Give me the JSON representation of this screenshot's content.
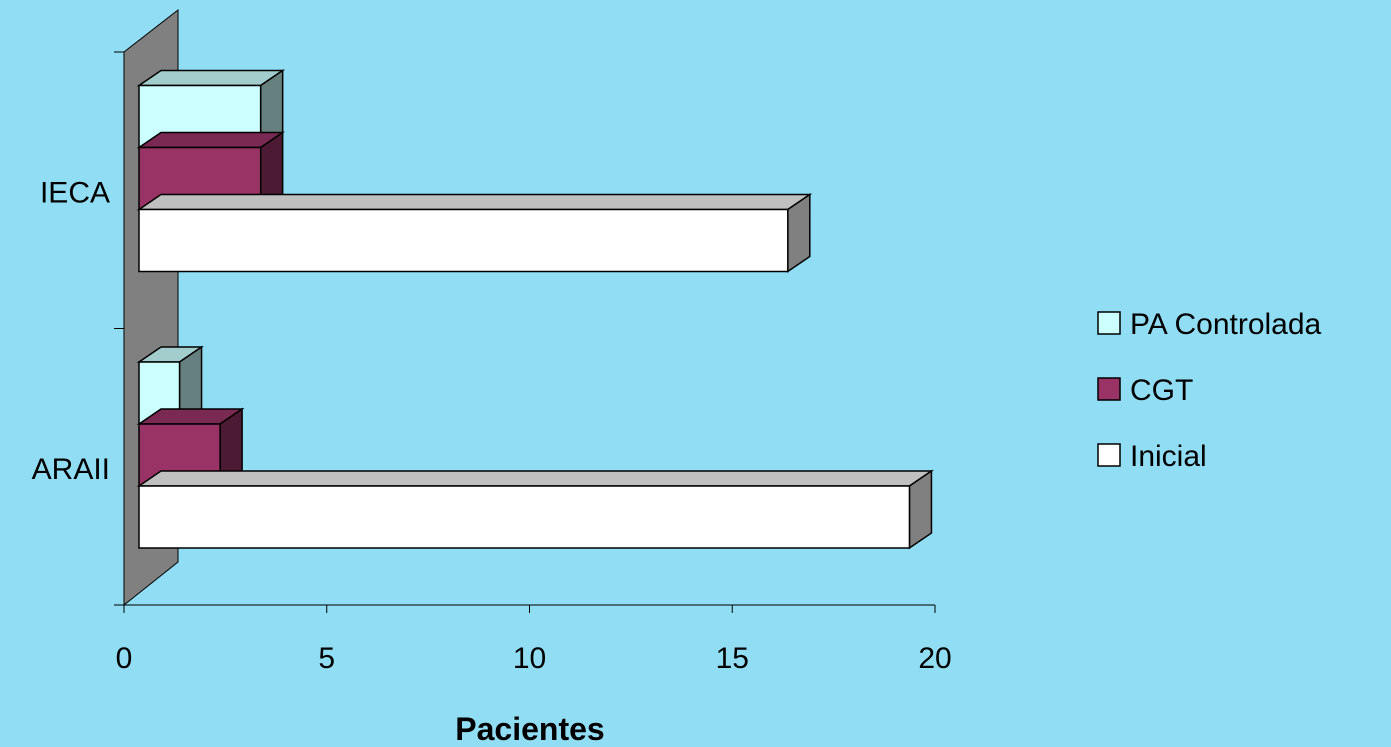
{
  "chart_data": {
    "type": "bar",
    "orientation": "horizontal",
    "three_d": true,
    "categories": [
      "IECA",
      "ARAII"
    ],
    "series": [
      {
        "name": "Inicial",
        "values": [
          16,
          19
        ],
        "color": "#FFFFFF"
      },
      {
        "name": "CGT",
        "values": [
          3,
          2
        ],
        "color": "#993366"
      },
      {
        "name": "PA Controlada",
        "values": [
          3,
          1
        ],
        "color": "#CCFFFF"
      }
    ],
    "xlabel": "Pacientes",
    "xlim": [
      0,
      20
    ],
    "xticks": [
      "0",
      "5",
      "10",
      "15",
      "20"
    ],
    "legend_position": "right",
    "legend_order": [
      "PA Controlada",
      "CGT",
      "Inicial"
    ],
    "colors": {
      "background": "#91DDF4",
      "wall": "#808080",
      "floor": "#C0C0C0"
    }
  }
}
